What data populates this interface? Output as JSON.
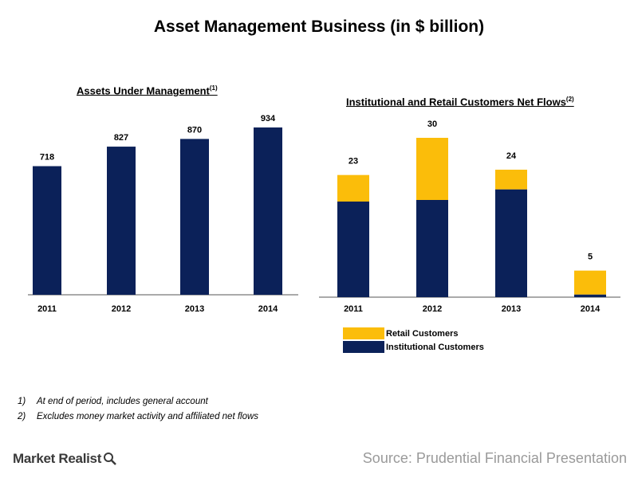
{
  "title": "Asset Management Business (in $ billion)",
  "colors": {
    "navy": "#0b2159",
    "gold": "#fbbd0a",
    "axis": "#555555"
  },
  "chart_data": [
    {
      "type": "bar",
      "title": "Assets Under Management",
      "title_note": "(1)",
      "categories": [
        "2011",
        "2012",
        "2013",
        "2014"
      ],
      "values": [
        718,
        827,
        870,
        934
      ],
      "ylim": [
        0,
        1000
      ]
    },
    {
      "type": "bar",
      "stacked": true,
      "title": "Institutional and Retail Customers Net Flows",
      "title_note": "(2)",
      "categories": [
        "2011",
        "2012",
        "2013",
        "2014"
      ],
      "series": [
        {
          "name": "Institutional Customers",
          "values": [
            18,
            18.3,
            20.3,
            0.5
          ]
        },
        {
          "name": "Retail Customers",
          "values": [
            5,
            11.7,
            3.7,
            4.5
          ]
        }
      ],
      "totals": [
        23,
        30,
        24,
        5
      ],
      "ylim": [
        0,
        32
      ],
      "legend": "bottom-left"
    }
  ],
  "footnotes": [
    {
      "num": "1)",
      "text": "At end of period, includes general account"
    },
    {
      "num": "2)",
      "text": "Excludes money market activity and affiliated net flows"
    }
  ],
  "brand": "Market Realist",
  "source": "Source: Prudential Financial Presentation"
}
